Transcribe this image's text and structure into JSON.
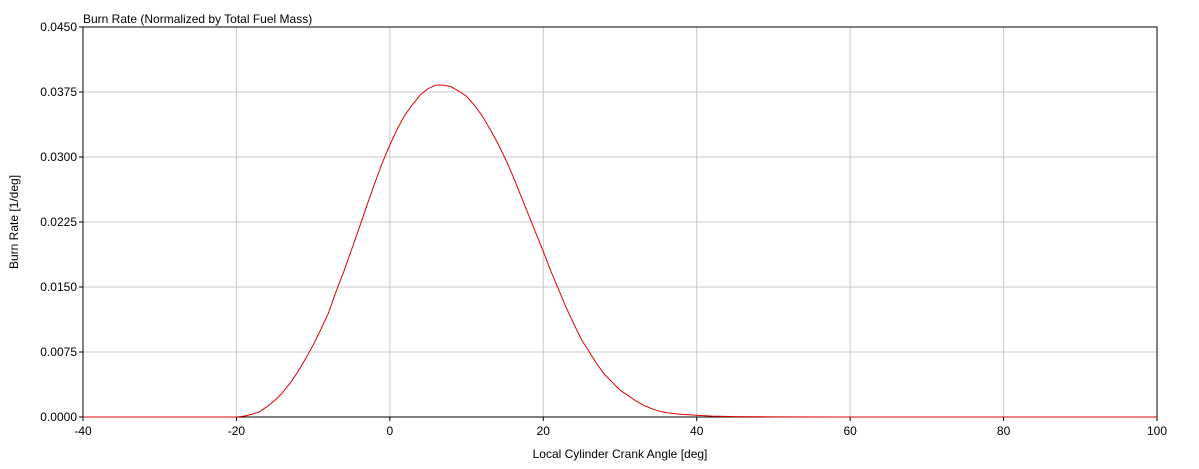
{
  "chart_data": {
    "type": "line",
    "title": "Burn Rate (Normalized by Total Fuel Mass)",
    "xlabel": "Local Cylinder Crank Angle [deg]",
    "ylabel": "Burn Rate [1/deg]",
    "xlim": [
      -40,
      100
    ],
    "ylim": [
      0,
      0.045
    ],
    "xticks": [
      -40,
      -20,
      0,
      20,
      40,
      60,
      80,
      100
    ],
    "xtick_labels": [
      "-40",
      "-20",
      "0",
      "20",
      "40",
      "60",
      "80",
      "100"
    ],
    "yticks": [
      0,
      0.0075,
      0.015,
      0.0225,
      0.03,
      0.0375,
      0.045
    ],
    "ytick_labels": [
      "0.0000",
      "0.0075",
      "0.0150",
      "0.0225",
      "0.0300",
      "0.0375",
      "0.0450"
    ],
    "grid": true,
    "series": [
      {
        "color": "#e00000",
        "x": [
          -40,
          -20,
          -19,
          -18,
          -17,
          -16,
          -15,
          -14,
          -13,
          -12,
          -11,
          -10,
          -9,
          -8,
          -7,
          -6,
          -5,
          -4,
          -3,
          -2,
          -1,
          0,
          1,
          2,
          3,
          4,
          5,
          6,
          7,
          8,
          9,
          10,
          11,
          12,
          13,
          14,
          15,
          16,
          17,
          18,
          19,
          20,
          21,
          22,
          23,
          24,
          25,
          26,
          27,
          28,
          29,
          30,
          31,
          32,
          33,
          34,
          35,
          36,
          38,
          40,
          42,
          45,
          50,
          58,
          100
        ],
        "y": [
          0,
          0,
          0.0001,
          0.0003,
          0.0006,
          0.0012,
          0.0019,
          0.0028,
          0.0039,
          0.0052,
          0.0067,
          0.0083,
          0.0101,
          0.012,
          0.0145,
          0.0168,
          0.0193,
          0.0218,
          0.0244,
          0.0269,
          0.0293,
          0.0314,
          0.0333,
          0.0349,
          0.0361,
          0.0372,
          0.0379,
          0.0383,
          0.0383,
          0.0381,
          0.0376,
          0.037,
          0.036,
          0.0348,
          0.0333,
          0.0317,
          0.0299,
          0.0279,
          0.0257,
          0.0235,
          0.0213,
          0.0191,
          0.0168,
          0.0147,
          0.0126,
          0.0107,
          0.0089,
          0.0075,
          0.0061,
          0.0049,
          0.004,
          0.0031,
          0.0025,
          0.0019,
          0.0014,
          0.001,
          0.0007,
          0.0005,
          0.0003,
          0.0002,
          0.0001,
          5e-05,
          2e-05,
          0,
          0
        ]
      }
    ]
  }
}
